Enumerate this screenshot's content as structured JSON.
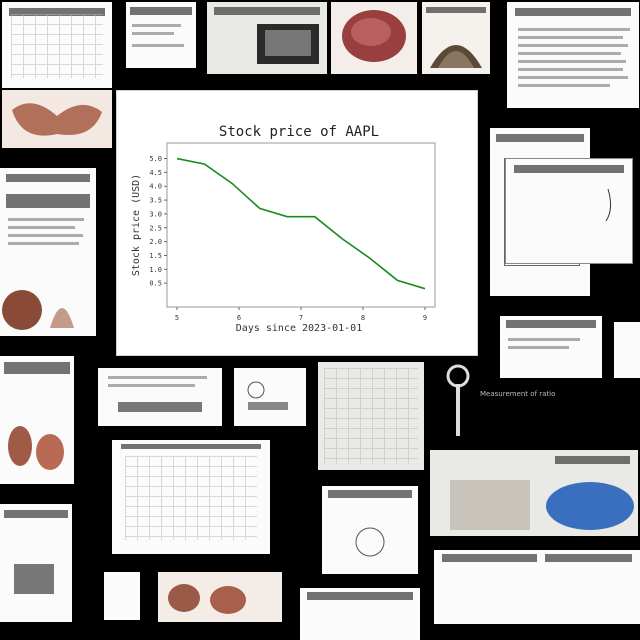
{
  "chart_data": {
    "type": "line",
    "title": "Stock price of AAPL",
    "xlabel": "Days since 2023-01-01",
    "ylabel": "Stock price (USD)",
    "x_ticks": [
      "5",
      "6",
      "7",
      "8",
      "9"
    ],
    "y_ticks": [
      "0.5",
      "1.0",
      "1.5",
      "2.0",
      "2.5",
      "3.0",
      "3.5",
      "4.0",
      "4.5",
      "5.0"
    ],
    "xlim": [
      0,
      9
    ],
    "ylim": [
      0,
      5.2
    ],
    "series": [
      {
        "name": "",
        "color": "#1a8a1a",
        "x": [
          0,
          1,
          2,
          3,
          4,
          5,
          6,
          7,
          8,
          9
        ],
        "y": [
          5.0,
          4.8,
          4.1,
          3.2,
          2.9,
          2.9,
          2.1,
          1.4,
          0.6,
          0.3
        ]
      }
    ]
  },
  "captions": {
    "right_small": "Measurement of ratio"
  }
}
